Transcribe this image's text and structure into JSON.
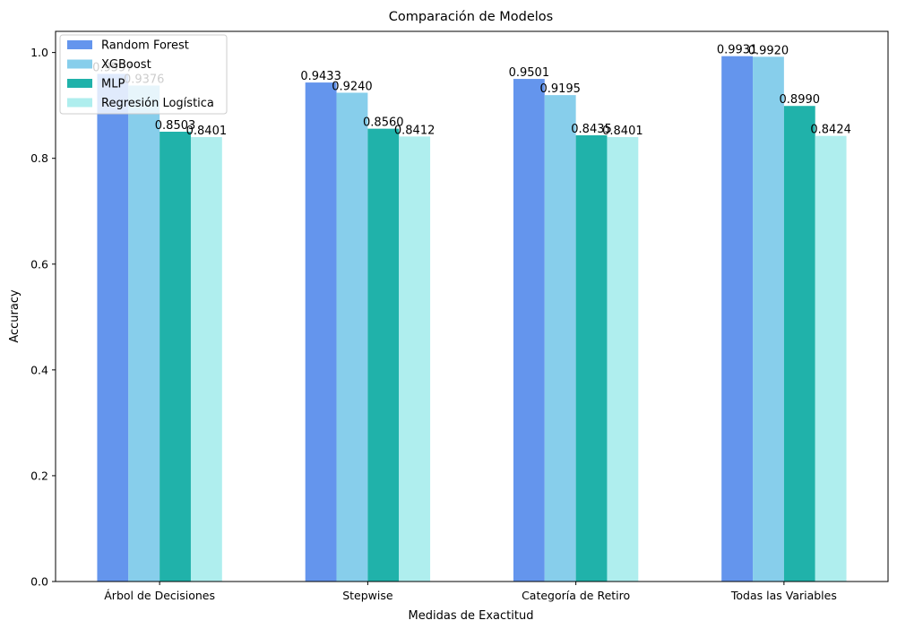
{
  "chart_data": {
    "type": "bar",
    "title": "Comparación de Modelos",
    "xlabel": "Medidas de Exactitud",
    "ylabel": "Accuracy",
    "categories": [
      "Árbol de Decisiones",
      "Stepwise",
      "Categoría de Retiro",
      "Todas las Variables"
    ],
    "ylim": [
      0,
      1.04
    ],
    "yticks": [
      "0.0",
      "0.2",
      "0.4",
      "0.6",
      "0.8",
      "1.0"
    ],
    "grid": false,
    "legend_position": "top-left",
    "series": [
      {
        "name": "Random Forest",
        "color": "#6495ed",
        "values": [
          0.9597,
          0.9433,
          0.9501,
          0.9931
        ],
        "labels": [
          "0.9597",
          "0.9433",
          "0.9501",
          "0.9931"
        ]
      },
      {
        "name": "XGBoost",
        "color": "#87ceeb",
        "values": [
          0.9376,
          0.924,
          0.9195,
          0.992
        ],
        "labels": [
          "0.9376",
          "0.9240",
          "0.9195",
          "0.9920"
        ]
      },
      {
        "name": "MLP",
        "color": "#20b2aa",
        "values": [
          0.8503,
          0.856,
          0.8435,
          0.899
        ],
        "labels": [
          "0.8503",
          "0.8560",
          "0.8435",
          "0.8990"
        ]
      },
      {
        "name": "Regresión Logística",
        "color": "#afeeee",
        "values": [
          0.8401,
          0.8412,
          0.8401,
          0.8424
        ],
        "labels": [
          "0.8401",
          "0.8412",
          "0.8401",
          "0.8424"
        ]
      }
    ]
  }
}
